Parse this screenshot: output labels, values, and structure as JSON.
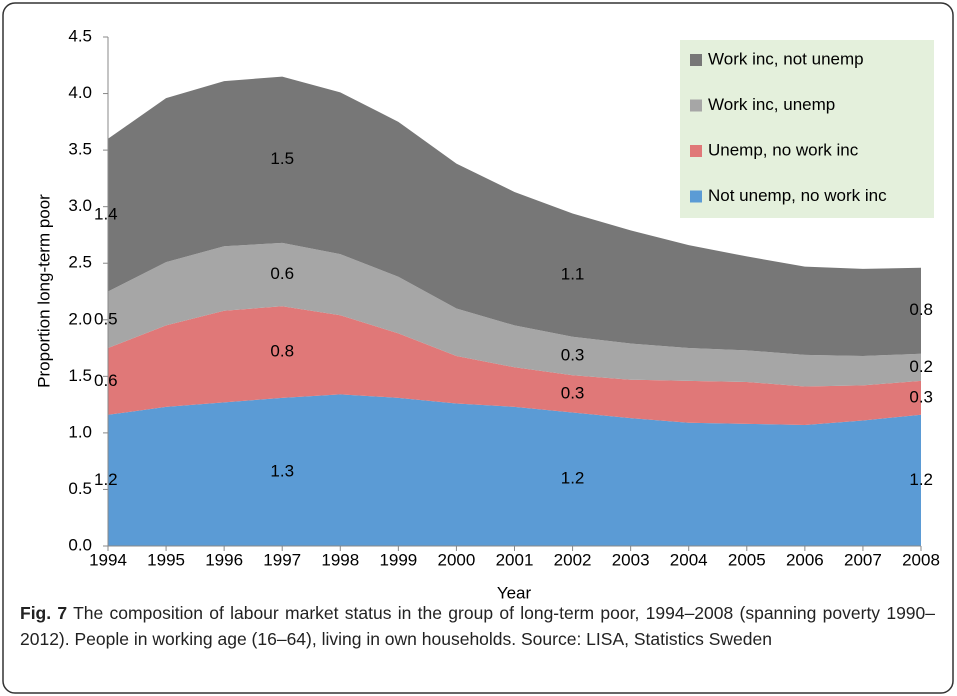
{
  "chart_data": {
    "type": "stacked-area",
    "xlabel": "Year",
    "ylabel": "Proportion long-term poor",
    "categories": [
      "1994",
      "1995",
      "1996",
      "1997",
      "1998",
      "1999",
      "2000",
      "2001",
      "2002",
      "2003",
      "2004",
      "2005",
      "2006",
      "2007",
      "2008"
    ],
    "ylim": [
      0,
      4.5
    ],
    "yticks": [
      {
        "value": 0,
        "label": "0.0"
      },
      0.5,
      {
        "value": 1,
        "label": "1.0"
      },
      1.5,
      {
        "value": 2,
        "label": "2.0"
      },
      2.5,
      {
        "value": 3,
        "label": "3.0"
      },
      3.5,
      {
        "value": 4,
        "label": "4.0"
      },
      4.5
    ],
    "legend": "top-right",
    "legend_color": "#e4f0dc",
    "series": [
      {
        "name": "Not unemp, no work inc",
        "color": "#5b9bd5",
        "values": [
          1.16,
          1.23,
          1.27,
          1.31,
          1.34,
          1.31,
          1.26,
          1.23,
          1.18,
          1.13,
          1.09,
          1.08,
          1.07,
          1.11,
          1.16
        ],
        "value_labels": [
          "1.2",
          null,
          null,
          "1.3",
          null,
          null,
          null,
          null,
          "1.2",
          null,
          null,
          null,
          null,
          null,
          "1.2"
        ]
      },
      {
        "name": "Unemp, no work inc",
        "color": "#e07878",
        "values": [
          0.59,
          0.72,
          0.81,
          0.81,
          0.7,
          0.57,
          0.42,
          0.35,
          0.33,
          0.34,
          0.37,
          0.37,
          0.34,
          0.31,
          0.3
        ],
        "value_labels": [
          "0.6",
          null,
          null,
          "0.8",
          null,
          null,
          null,
          null,
          "0.3",
          null,
          null,
          null,
          null,
          null,
          "0.3"
        ]
      },
      {
        "name": "Work inc, unemp",
        "color": "#a6a6a6",
        "values": [
          0.5,
          0.56,
          0.57,
          0.56,
          0.54,
          0.5,
          0.42,
          0.37,
          0.34,
          0.32,
          0.29,
          0.28,
          0.28,
          0.26,
          0.24
        ],
        "value_labels": [
          "0.5",
          null,
          null,
          "0.6",
          null,
          null,
          null,
          null,
          "0.3",
          null,
          null,
          null,
          null,
          null,
          "0.2"
        ]
      },
      {
        "name": "Work inc, not unemp",
        "color": "#777777",
        "values": [
          1.35,
          1.45,
          1.46,
          1.47,
          1.43,
          1.37,
          1.28,
          1.18,
          1.09,
          1.0,
          0.91,
          0.83,
          0.78,
          0.77,
          0.76
        ],
        "value_labels": [
          "1.4",
          null,
          null,
          "1.5",
          null,
          null,
          null,
          null,
          "1.1",
          null,
          null,
          null,
          null,
          null,
          "0.8"
        ]
      }
    ]
  },
  "caption": {
    "label": "Fig. 7",
    "text": "The composition of labour market status in the group of long-term poor, 1994–2008 (spanning poverty 1990–2012). People in working age (16–64), living in own households. Source: LISA, Statistics Sweden"
  }
}
